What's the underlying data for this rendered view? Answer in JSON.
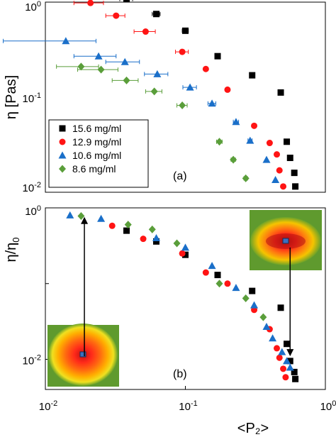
{
  "chart_data": [
    {
      "type": "scatter",
      "panel_label": "(a)",
      "ylabel": "η [Pas]",
      "yscale": "log",
      "ylim": [
        0.01,
        1.0
      ],
      "yticks": [
        {
          "value": 1.0,
          "label": "10",
          "exp": "0"
        },
        {
          "value": 0.1,
          "label": "10",
          "exp": "-1"
        },
        {
          "value": 0.01,
          "label": "10",
          "exp": "-2"
        }
      ],
      "xscale": "log",
      "xlim": [
        0.01,
        1.0
      ],
      "legend_position": "bottom-left",
      "series": [
        {
          "name": "15.6 mg/ml",
          "marker": "square",
          "color": "#000000",
          "points": [
            {
              "x": 0.038,
              "y": 1.08,
              "xerr": 0.004
            },
            {
              "x": 0.062,
              "y": 0.75,
              "xerr": 0.004
            },
            {
              "x": 0.1,
              "y": 0.5,
              "xerr": 0.005
            },
            {
              "x": 0.17,
              "y": 0.27
            },
            {
              "x": 0.3,
              "y": 0.17
            },
            {
              "x": 0.48,
              "y": 0.112
            },
            {
              "x": 0.53,
              "y": 0.034
            },
            {
              "x": 0.56,
              "y": 0.023
            },
            {
              "x": 0.6,
              "y": 0.016
            },
            {
              "x": 0.61,
              "y": 0.0115
            }
          ]
        },
        {
          "name": "12.9 mg/ml",
          "marker": "circle",
          "color": "#ff1414",
          "points": [
            {
              "x": 0.021,
              "y": 0.98,
              "xerr": 0.005
            },
            {
              "x": 0.032,
              "y": 0.72,
              "xerr": 0.005
            },
            {
              "x": 0.052,
              "y": 0.49,
              "xerr": 0.009
            },
            {
              "x": 0.095,
              "y": 0.3,
              "xerr": 0.01
            },
            {
              "x": 0.14,
              "y": 0.198
            },
            {
              "x": 0.2,
              "y": 0.12
            },
            {
              "x": 0.31,
              "y": 0.05
            },
            {
              "x": 0.4,
              "y": 0.033
            },
            {
              "x": 0.45,
              "y": 0.025
            },
            {
              "x": 0.47,
              "y": 0.017
            },
            {
              "x": 0.5,
              "y": 0.0115
            }
          ]
        },
        {
          "name": "10.6 mg/ml",
          "marker": "triangle",
          "color": "#1a6fc9",
          "points": [
            {
              "x": 0.014,
              "y": 0.39,
              "xerr": 0.009
            },
            {
              "x": 0.024,
              "y": 0.27,
              "xerr": 0.008
            },
            {
              "x": 0.037,
              "y": 0.235,
              "xerr": 0.01
            },
            {
              "x": 0.063,
              "y": 0.175,
              "xerr": 0.012
            },
            {
              "x": 0.108,
              "y": 0.127,
              "xerr": 0.012
            },
            {
              "x": 0.155,
              "y": 0.086,
              "xerr": 0.01
            },
            {
              "x": 0.23,
              "y": 0.055,
              "xerr": 0.01
            },
            {
              "x": 0.29,
              "y": 0.035,
              "xerr": 0.01
            },
            {
              "x": 0.38,
              "y": 0.022
            },
            {
              "x": 0.44,
              "y": 0.0135
            }
          ]
        },
        {
          "name": "8.6 mg/ml",
          "marker": "diamond",
          "color": "#5a9e3a",
          "points": [
            {
              "x": 0.018,
              "y": 0.21,
              "xerr": 0.006
            },
            {
              "x": 0.025,
              "y": 0.195,
              "xerr": 0.008
            },
            {
              "x": 0.038,
              "y": 0.15,
              "xerr": 0.008
            },
            {
              "x": 0.06,
              "y": 0.115,
              "xerr": 0.008
            },
            {
              "x": 0.095,
              "y": 0.082,
              "xerr": 0.008
            },
            {
              "x": 0.175,
              "y": 0.034,
              "xerr": 0.008
            },
            {
              "x": 0.22,
              "y": 0.022,
              "xerr": 0.008
            },
            {
              "x": 0.27,
              "y": 0.014,
              "xerr": 0.008
            }
          ]
        }
      ]
    },
    {
      "type": "scatter",
      "panel_label": "(b)",
      "xlabel": "<P₂>",
      "ylabel": "η/η",
      "ylabel_sub": "0",
      "xscale": "log",
      "xlim": [
        0.01,
        1.0
      ],
      "xticks": [
        {
          "value": 0.01,
          "label": "10",
          "exp": "-2"
        },
        {
          "value": 0.1,
          "label": "10",
          "exp": "-1"
        },
        {
          "value": 1.0,
          "label": "10",
          "exp": "0"
        }
      ],
      "yscale": "log",
      "ylim": [
        0.004,
        1.0
      ],
      "yticks": [
        {
          "value": 1.0,
          "label": "10",
          "exp": "0"
        },
        {
          "value": 0.01,
          "label": "10",
          "exp": "-2"
        }
      ],
      "yticks_minor": [
        0.1
      ],
      "annotations": [
        {
          "type": "arrow",
          "x": 0.019,
          "y_from": 0.011,
          "y_to": 0.76,
          "inset": "isotropic scattering pattern"
        },
        {
          "type": "arrow",
          "x": 0.56,
          "y_from": 0.3,
          "y_to": 0.011,
          "inset": "anisotropic scattering pattern"
        }
      ],
      "series": [
        {
          "name": "15.6 mg/ml",
          "marker": "square",
          "color": "#000000",
          "points": [
            {
              "x": 0.038,
              "y": 0.5
            },
            {
              "x": 0.062,
              "y": 0.36
            },
            {
              "x": 0.1,
              "y": 0.24
            },
            {
              "x": 0.17,
              "y": 0.13
            },
            {
              "x": 0.3,
              "y": 0.08
            },
            {
              "x": 0.48,
              "y": 0.048
            },
            {
              "x": 0.53,
              "y": 0.016
            },
            {
              "x": 0.56,
              "y": 0.0095
            },
            {
              "x": 0.6,
              "y": 0.0068
            },
            {
              "x": 0.61,
              "y": 0.0055
            }
          ]
        },
        {
          "name": "12.9 mg/ml",
          "marker": "circle",
          "color": "#ff1414",
          "points": [
            {
              "x": 0.03,
              "y": 0.58
            },
            {
              "x": 0.05,
              "y": 0.39
            },
            {
              "x": 0.095,
              "y": 0.25
            },
            {
              "x": 0.14,
              "y": 0.14
            },
            {
              "x": 0.2,
              "y": 0.1
            },
            {
              "x": 0.31,
              "y": 0.045
            },
            {
              "x": 0.4,
              "y": 0.025
            },
            {
              "x": 0.45,
              "y": 0.014
            },
            {
              "x": 0.47,
              "y": 0.0105
            },
            {
              "x": 0.5,
              "y": 0.0075
            },
            {
              "x": 0.52,
              "y": 0.0058
            }
          ]
        },
        {
          "name": "10.6 mg/ml",
          "marker": "triangle",
          "color": "#1a6fc9",
          "points": [
            {
              "x": 0.015,
              "y": 0.8
            },
            {
              "x": 0.025,
              "y": 0.72
            },
            {
              "x": 0.062,
              "y": 0.4
            },
            {
              "x": 0.1,
              "y": 0.3
            },
            {
              "x": 0.155,
              "y": 0.172
            },
            {
              "x": 0.23,
              "y": 0.088
            },
            {
              "x": 0.31,
              "y": 0.052
            },
            {
              "x": 0.38,
              "y": 0.027
            },
            {
              "x": 0.42,
              "y": 0.019
            },
            {
              "x": 0.49,
              "y": 0.0125
            },
            {
              "x": 0.53,
              "y": 0.0095
            },
            {
              "x": 0.56,
              "y": 0.0078
            }
          ]
        },
        {
          "name": "8.6 mg/ml",
          "marker": "diamond",
          "color": "#5a9e3a",
          "points": [
            {
              "x": 0.018,
              "y": 0.78
            },
            {
              "x": 0.039,
              "y": 0.6
            },
            {
              "x": 0.058,
              "y": 0.52
            },
            {
              "x": 0.087,
              "y": 0.34
            },
            {
              "x": 0.175,
              "y": 0.1
            },
            {
              "x": 0.27,
              "y": 0.064
            },
            {
              "x": 0.36,
              "y": 0.036
            }
          ]
        }
      ]
    }
  ]
}
